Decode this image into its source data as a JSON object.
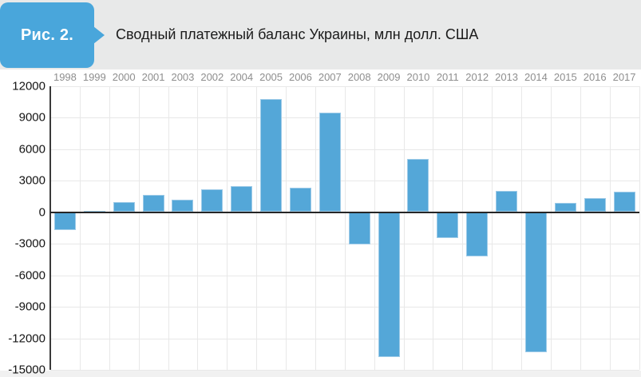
{
  "header": {
    "figure_label": "Рис. 2.",
    "title": "Сводный платежный баланс Украины, млн долл. США"
  },
  "colors": {
    "accent_blue": "#49a6db",
    "bar_fill": "#54a7d8",
    "bar_border": "#9ecbe8",
    "header_band": "#e8e9e9",
    "grid_line": "#e8e8e8",
    "axis_line": "#3a3a3a",
    "zero_line": "#262626",
    "year_label_color": "#8e8e8e",
    "ytick_label_color": "#141414"
  },
  "chart_data": {
    "type": "bar",
    "title": "Сводный платежный баланс Украины, млн долл. США",
    "figure_label": "Рис. 2.",
    "categories": [
      "1998",
      "1999",
      "2000",
      "2001",
      "2003",
      "2002",
      "2004",
      "2005",
      "2006",
      "2007",
      "2008",
      "2009",
      "2010",
      "2011",
      "2012",
      "2013",
      "2014",
      "2015",
      "2016",
      "2017"
    ],
    "values": [
      -1700,
      150,
      950,
      1650,
      1200,
      2200,
      2500,
      10750,
      2350,
      9450,
      -3100,
      -13800,
      5050,
      -2500,
      -4200,
      2000,
      -13300,
      850,
      1300,
      1900
    ],
    "xlabel": "",
    "ylabel": "",
    "ylim": [
      -15000,
      12000
    ],
    "ytick_step": 3000,
    "yticks": [
      12000,
      9000,
      6000,
      3000,
      0,
      -3000,
      -6000,
      -9000,
      -12000,
      -15000
    ],
    "grid": true,
    "legend": false,
    "x_labels_position": "top",
    "units": "млн долл. США"
  }
}
